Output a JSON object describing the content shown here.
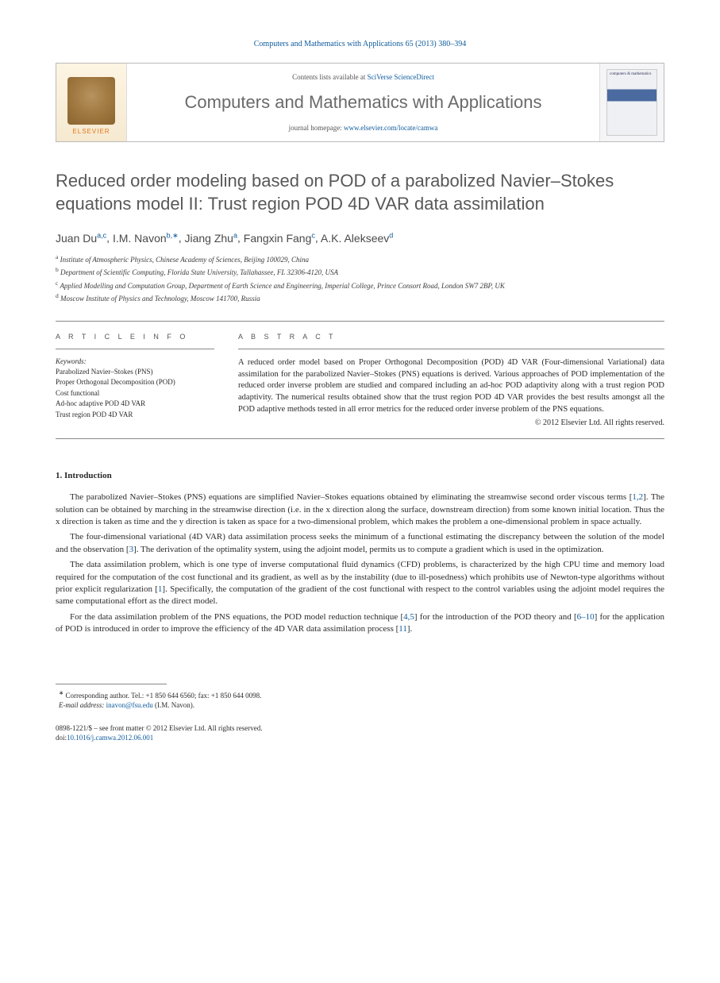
{
  "header": {
    "citation": "Computers and Mathematics with Applications 65 (2013) 380–394"
  },
  "banner": {
    "contents_prefix": "Contents lists available at ",
    "contents_link": "SciVerse ScienceDirect",
    "journal_title": "Computers and Mathematics with Applications",
    "homepage_prefix": "journal homepage: ",
    "homepage_link": "www.elsevier.com/locate/camwa",
    "publisher_label": "ELSEVIER",
    "cover_text": "computers & mathematics"
  },
  "title": "Reduced order modeling based on POD of a parabolized Navier–Stokes equations model II: Trust region POD 4D VAR data assimilation",
  "authors": [
    {
      "name": "Juan Du",
      "marks": "a,c"
    },
    {
      "name": "I.M. Navon",
      "marks": "b,∗"
    },
    {
      "name": "Jiang Zhu",
      "marks": "a"
    },
    {
      "name": "Fangxin Fang",
      "marks": "c"
    },
    {
      "name": "A.K. Alekseev",
      "marks": "d"
    }
  ],
  "affiliations": [
    {
      "mark": "a",
      "text": "Institute of Atmospheric Physics, Chinese Academy of Sciences, Beijing 100029, China"
    },
    {
      "mark": "b",
      "text": "Department of Scientific Computing, Florida State University, Tallahassee, FL 32306-4120, USA"
    },
    {
      "mark": "c",
      "text": "Applied Modelling and Computation Group, Department of Earth Science and Engineering, Imperial College, Prince Consort Road, London SW7 2BP, UK"
    },
    {
      "mark": "d",
      "text": "Moscow Institute of Physics and Technology, Moscow 141700, Russia"
    }
  ],
  "info": {
    "section_label": "A R T I C L E   I N F O",
    "keywords_label": "Keywords:",
    "keywords": [
      "Parabolized Navier–Stokes (PNS)",
      "Proper Orthogonal Decomposition (POD)",
      "Cost functional",
      "Ad-hoc adaptive POD 4D VAR",
      "Trust region POD 4D VAR"
    ]
  },
  "abstract": {
    "section_label": "A B S T R A C T",
    "text": "A reduced order model based on Proper Orthogonal Decomposition (POD) 4D VAR (Four-dimensional Variational) data assimilation for the parabolized Navier–Stokes (PNS) equations is derived. Various approaches of POD implementation of the reduced order inverse problem are studied and compared including an ad-hoc POD adaptivity along with a trust region POD adaptivity. The numerical results obtained show that the trust region POD 4D VAR provides the best results amongst all the POD adaptive methods tested in all error metrics for the reduced order inverse problem of the PNS equations.",
    "copyright": "© 2012 Elsevier Ltd. All rights reserved."
  },
  "sections": {
    "intro_heading": "1.  Introduction",
    "paragraphs": [
      "The parabolized Navier–Stokes (PNS) equations are simplified Navier–Stokes equations obtained by eliminating the streamwise second order viscous terms [1,2]. The solution can be obtained by marching in the streamwise direction (i.e. in the x direction along the surface, downstream direction) from some known initial location. Thus the x direction is taken as time and the y direction is taken as space for a two-dimensional problem, which makes the problem a one-dimensional problem in space actually.",
      "The four-dimensional variational (4D VAR) data assimilation process seeks the minimum of a functional estimating the discrepancy between the solution of the model and the observation [3]. The derivation of the optimality system, using the adjoint model, permits us to compute a gradient which is used in the optimization.",
      "The data assimilation problem, which is one type of inverse computational fluid dynamics (CFD) problems, is characterized by the high CPU time and memory load required for the computation of the cost functional and its gradient, as well as by the instability (due to ill-posedness) which prohibits use of Newton-type algorithms without prior explicit regularization [1]. Specifically, the computation of the gradient of the cost functional with respect to the control variables using the adjoint model requires the same computational effort as the direct model.",
      "For the data assimilation problem of the PNS equations, the POD model reduction technique [4,5] for the introduction of the POD theory and [6–10] for the application of POD is introduced in order to improve the efficiency of the 4D VAR data assimilation process [11]."
    ]
  },
  "footnote": {
    "corr": "Corresponding author. Tel.: +1 850 644 6560; fax: +1 850 644 0098.",
    "email_label": "E-mail address:",
    "email": "inavon@fsu.edu",
    "email_suffix": "(I.M. Navon)."
  },
  "footer": {
    "line1": "0898-1221/$ – see front matter © 2012 Elsevier Ltd. All rights reserved.",
    "doi_label": "doi:",
    "doi": "10.1016/j.camwa.2012.06.001"
  },
  "colors": {
    "link": "#0d5a9c",
    "text": "#2a2a2a",
    "title_gray": "#585858",
    "elsevier_orange": "#e67817"
  }
}
